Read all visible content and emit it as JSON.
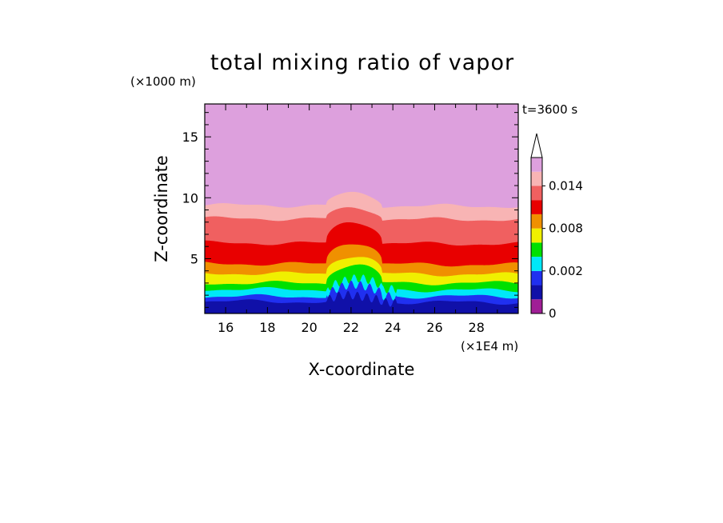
{
  "chart_data": {
    "type": "contour",
    "title": "total mixing ratio of vapor",
    "xlabel": "X-coordinate",
    "ylabel": "Z-coordinate",
    "x_unit": "(×1E4 m)",
    "y_unit": "(×1000 m)",
    "time_label": "t=3600 s",
    "xlim": [
      15,
      30
    ],
    "ylim": [
      0.5,
      17.7
    ],
    "x_ticks": [
      16,
      18,
      20,
      22,
      24,
      26,
      28
    ],
    "y_ticks": [
      5,
      10,
      15
    ],
    "levels": [
      0,
      0.0005,
      0.001,
      0.002,
      0.004,
      0.006,
      0.008,
      0.01,
      0.012,
      0.014,
      0.016
    ],
    "level_colors": [
      "#a01e96",
      "#1010a8",
      "#2030f0",
      "#00e8f8",
      "#00e000",
      "#f0f000",
      "#f09000",
      "#e80000",
      "#f06060",
      "#f8b4b4",
      "#dda0dd"
    ],
    "colorbar_labels": [
      {
        "value": 0,
        "label": "0"
      },
      {
        "value": 0.002,
        "label": "0.002"
      },
      {
        "value": 0.008,
        "label": "0.008"
      },
      {
        "value": 0.014,
        "label": "0.014"
      }
    ],
    "contour_boundaries_z": [
      {
        "upper_level": 0.0005,
        "z_left": 9.4,
        "z_right": 9.3,
        "z_peak": 10.4
      },
      {
        "upper_level": 0.001,
        "z_left": 8.3,
        "z_right": 8.2,
        "z_peak": 9.2
      },
      {
        "upper_level": 0.002,
        "z_left": 6.3,
        "z_right": 6.2,
        "z_peak": 8.1
      },
      {
        "upper_level": 0.004,
        "z_left": 4.6,
        "z_right": 4.5,
        "z_peak": 6.4
      },
      {
        "upper_level": 0.006,
        "z_left": 3.8,
        "z_right": 3.7,
        "z_peak": 5.3
      },
      {
        "upper_level": 0.008,
        "z_left": 3.0,
        "z_right": 3.0,
        "z_peak": 4.5
      },
      {
        "upper_level": 0.01,
        "z_left": 2.5,
        "z_right": 2.4,
        "z_peak": 3.3
      },
      {
        "upper_level": 0.012,
        "z_left": 1.9,
        "z_right": 1.9,
        "z_peak": 2.7
      },
      {
        "upper_level": 0.014,
        "z_left": 1.5,
        "z_right": 1.4,
        "z_peak": 1.9
      }
    ],
    "feature_x_range": [
      20.8,
      23.5
    ],
    "grid": false
  }
}
